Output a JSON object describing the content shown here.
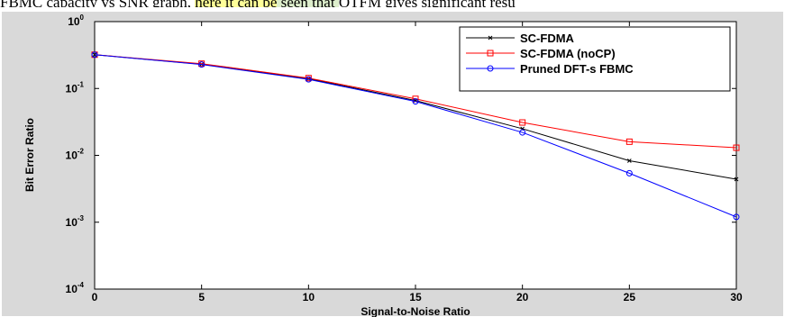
{
  "caption": {
    "prefix": "FBMC capacity vs SNR graph, ",
    "highlight1": "here it can be",
    "highlight2": " seen that ",
    "suffix": "OTFM gives significant resu"
  },
  "chart_data": {
    "type": "line",
    "title": "",
    "xlabel": "Signal-to-Noise Ratio",
    "ylabel": "Bit Error Ratio",
    "xlim": [
      0,
      30
    ],
    "ylim": [
      0.0001,
      1
    ],
    "yscale": "log",
    "xticks": [
      "0",
      "5",
      "10",
      "15",
      "20",
      "25",
      "30"
    ],
    "yticks": [
      {
        "base": "10",
        "exp": "0",
        "value": 1
      },
      {
        "base": "10",
        "exp": "-1",
        "value": 0.1
      },
      {
        "base": "10",
        "exp": "-2",
        "value": 0.01
      },
      {
        "base": "10",
        "exp": "-3",
        "value": 0.001
      },
      {
        "base": "10",
        "exp": "-4",
        "value": 0.0001
      }
    ],
    "grid": false,
    "legend_position": "top-right",
    "x": [
      0,
      5,
      10,
      15,
      20,
      25,
      30
    ],
    "series": [
      {
        "name": "SC-FDMA",
        "color": "#000000",
        "marker": "x",
        "values": [
          0.32,
          0.23,
          0.14,
          0.066,
          0.025,
          0.0083,
          0.0044
        ]
      },
      {
        "name": "SC-FDMA (noCP)",
        "color": "#ff0000",
        "marker": "square",
        "values": [
          0.32,
          0.235,
          0.143,
          0.07,
          0.031,
          0.016,
          0.013
        ]
      },
      {
        "name": "Pruned DFT-s FBMC",
        "color": "#0000ff",
        "marker": "circle",
        "values": [
          0.32,
          0.228,
          0.137,
          0.064,
          0.022,
          0.0054,
          0.0012
        ]
      }
    ]
  }
}
